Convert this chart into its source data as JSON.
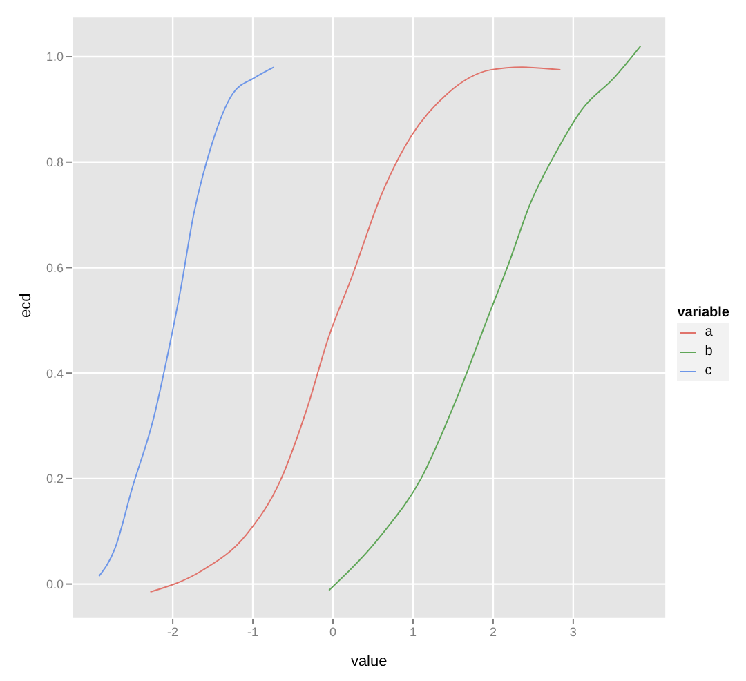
{
  "chart_data": {
    "type": "line",
    "xlabel": "value",
    "ylabel": "ecd",
    "legend_title": "variable",
    "legend": "right",
    "grid": true,
    "marker": "none",
    "line_style": "solid",
    "xlim": [
      -3.26,
      4.16
    ],
    "xticks": [
      -2,
      -1,
      0,
      1,
      2,
      3
    ],
    "ylim": [
      -0.066,
      1.076
    ],
    "yticks": [
      {
        "value": 0,
        "label": "0.0"
      },
      {
        "value": 0.2,
        "label": "0.2"
      },
      {
        "value": 0.4,
        "label": "0.4"
      },
      {
        "value": 0.6,
        "label": "0.6"
      },
      {
        "value": 0.8,
        "label": "0.8"
      },
      {
        "value": 1,
        "label": "1.0"
      }
    ],
    "series": [
      {
        "name": "a",
        "color": "#e0736b",
        "x": [
          -2.28,
          -1.64,
          -1.08,
          -0.66,
          -0.33,
          -0.05,
          0.23,
          0.61,
          0.98,
          1.43,
          1.97,
          2.36,
          2.84
        ],
        "values": [
          -0.015,
          0.025,
          0.094,
          0.195,
          0.33,
          0.47,
          0.58,
          0.74,
          0.85,
          0.93,
          0.975,
          0.98,
          0.975
        ]
      },
      {
        "name": "b",
        "color": "#5fa657",
        "x": [
          -0.05,
          0.61,
          1.1,
          1.54,
          1.92,
          2.2,
          2.46,
          2.79,
          3.11,
          3.51,
          3.84
        ],
        "values": [
          -0.012,
          0.094,
          0.2,
          0.35,
          0.5,
          0.61,
          0.72,
          0.82,
          0.9,
          0.96,
          1.02
        ]
      },
      {
        "name": "c",
        "color": "#6d96e8",
        "x": [
          -2.92,
          -2.72,
          -2.51,
          -2.23,
          -2.07,
          -1.9,
          -1.74,
          -1.52,
          -1.25,
          -0.98,
          -0.74
        ],
        "values": [
          0.015,
          0.068,
          0.18,
          0.32,
          0.43,
          0.56,
          0.7,
          0.83,
          0.93,
          0.96,
          0.98
        ]
      }
    ]
  }
}
